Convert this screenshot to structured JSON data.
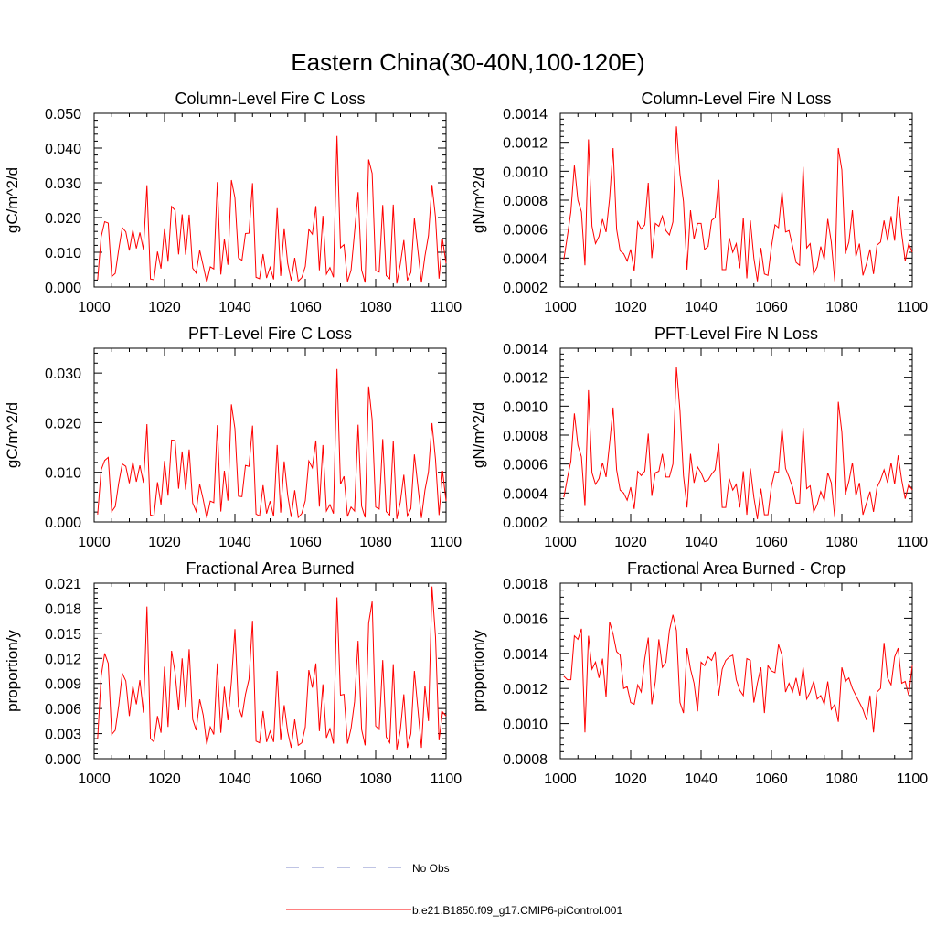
{
  "figure": {
    "title": "Eastern China(30-40N,100-120E)"
  },
  "legend": {
    "obs_label": "No Obs",
    "model_label": "b.e21.B1850.f09_g17.CMIP6-piControl.001",
    "obs_color": "#7f88c8",
    "model_color": "#ff0000"
  },
  "chart_data": [
    {
      "type": "line",
      "title": "Column-Level Fire C Loss",
      "xlabel": "",
      "ylabel": "gC/m^2/d",
      "xlim": [
        1000,
        1100
      ],
      "ylim": [
        0,
        0.05
      ],
      "xticks": [
        "1000",
        "1020",
        "1040",
        "1060",
        "1080",
        "1100"
      ],
      "yticks": [
        "0.000",
        "0.010",
        "0.020",
        "0.030",
        "0.040",
        "0.050"
      ],
      "series": [
        {
          "name": "b.e21.B1850.f09_g17.CMIP6-piControl.001",
          "color": "#ff0000",
          "x_start": 1001,
          "values": [
            0.0021,
            0.0145,
            0.0188,
            0.0184,
            0.003,
            0.0039,
            0.0109,
            0.0171,
            0.0159,
            0.0105,
            0.0164,
            0.0111,
            0.0157,
            0.0108,
            0.0293,
            0.0023,
            0.0021,
            0.0102,
            0.0053,
            0.0169,
            0.0073,
            0.0232,
            0.0221,
            0.0094,
            0.0209,
            0.0093,
            0.0208,
            0.0054,
            0.004,
            0.0106,
            0.0061,
            0.0014,
            0.0058,
            0.0052,
            0.0302,
            0.0036,
            0.0138,
            0.0064,
            0.0308,
            0.0257,
            0.0084,
            0.0077,
            0.0154,
            0.0155,
            0.0299,
            0.0028,
            0.0024,
            0.0095,
            0.0026,
            0.0057,
            0.0022,
            0.0227,
            0.0032,
            0.0169,
            0.0068,
            0.0019,
            0.0084,
            0.0017,
            0.0027,
            0.0059,
            0.0166,
            0.0152,
            0.0233,
            0.0048,
            0.0205,
            0.0037,
            0.0056,
            0.0028,
            0.0435,
            0.0113,
            0.0122,
            0.0016,
            0.0048,
            0.0158,
            0.0273,
            0.0049,
            0.0013,
            0.0367,
            0.0327,
            0.0047,
            0.0043,
            0.0236,
            0.0033,
            0.0024,
            0.0237,
            0.001,
            0.0066,
            0.0135,
            0.0019,
            0.0042,
            0.0198,
            0.0105,
            0.0013,
            0.0089,
            0.0148,
            0.0294,
            0.0201,
            0.0024,
            0.0137,
            0.0068
          ]
        }
      ]
    },
    {
      "type": "line",
      "title": "Column-Level Fire N Loss",
      "xlabel": "",
      "ylabel": "gN/m^2/d",
      "xlim": [
        1000,
        1100
      ],
      "ylim": [
        0.0002,
        0.0014
      ],
      "xticks": [
        "1000",
        "1020",
        "1040",
        "1060",
        "1080",
        "1100"
      ],
      "yticks": [
        "0.0002",
        "0.0004",
        "0.0006",
        "0.0008",
        "0.0010",
        "0.0012",
        "0.0014"
      ],
      "series": [
        {
          "name": "b.e21.B1850.f09_g17.CMIP6-piControl.001",
          "color": "#ff0000",
          "x_start": 1001,
          "values": [
            0.00039,
            0.00055,
            0.00072,
            0.00104,
            0.0008,
            0.00072,
            0.00035,
            0.00122,
            0.00062,
            0.0005,
            0.00055,
            0.00067,
            0.00058,
            0.00081,
            0.00116,
            0.0006,
            0.00045,
            0.00043,
            0.00038,
            0.00046,
            0.00031,
            0.00065,
            0.0006,
            0.00063,
            0.00092,
            0.0004,
            0.00064,
            0.00062,
            0.00069,
            0.00059,
            0.00056,
            0.00065,
            0.00131,
            0.00098,
            0.00079,
            0.00032,
            0.00073,
            0.00053,
            0.00064,
            0.00064,
            0.00046,
            0.00048,
            0.00066,
            0.00068,
            0.00094,
            0.00032,
            0.00032,
            0.00054,
            0.00044,
            0.0005,
            0.00033,
            0.00068,
            0.00026,
            0.00066,
            0.0004,
            0.00024,
            0.00047,
            0.00029,
            0.00028,
            0.00048,
            0.00063,
            0.00061,
            0.00086,
            0.00058,
            0.00059,
            0.00048,
            0.00037,
            0.00035,
            0.00103,
            0.00047,
            0.0005,
            0.00029,
            0.00034,
            0.00048,
            0.00039,
            0.00067,
            0.00051,
            0.00024,
            0.00116,
            0.00101,
            0.00043,
            0.00051,
            0.00073,
            0.00041,
            0.0005,
            0.00028,
            0.00036,
            0.00046,
            0.00029,
            0.00049,
            0.00051,
            0.00066,
            0.00052,
            0.00069,
            0.00052,
            0.00083,
            0.00057,
            0.00038,
            0.0005,
            0.00044
          ]
        }
      ]
    },
    {
      "type": "line",
      "title": "PFT-Level Fire C Loss",
      "xlabel": "",
      "ylabel": "gC/m^2/d",
      "xlim": [
        1000,
        1100
      ],
      "ylim": [
        0,
        0.035
      ],
      "xticks": [
        "1000",
        "1020",
        "1040",
        "1060",
        "1080",
        "1100"
      ],
      "yticks": [
        "0.000",
        "0.010",
        "0.020",
        "0.030"
      ],
      "series": [
        {
          "name": "b.e21.B1850.f09_g17.CMIP6-piControl.001",
          "color": "#ff0000",
          "x_start": 1001,
          "values": [
            0.0015,
            0.0105,
            0.0124,
            0.013,
            0.0021,
            0.0031,
            0.0079,
            0.0117,
            0.0112,
            0.0078,
            0.0121,
            0.0081,
            0.0114,
            0.0079,
            0.0197,
            0.0014,
            0.0012,
            0.008,
            0.0035,
            0.0123,
            0.0053,
            0.0165,
            0.0164,
            0.0067,
            0.0142,
            0.0065,
            0.0146,
            0.0038,
            0.0021,
            0.0076,
            0.0045,
            0.0008,
            0.0042,
            0.0039,
            0.0195,
            0.0021,
            0.0103,
            0.0043,
            0.0237,
            0.0188,
            0.0052,
            0.0051,
            0.0114,
            0.0112,
            0.0194,
            0.0016,
            0.0012,
            0.0074,
            0.0017,
            0.0042,
            0.0011,
            0.0155,
            0.0019,
            0.0122,
            0.0054,
            0.001,
            0.0064,
            0.0009,
            0.0017,
            0.0043,
            0.0123,
            0.0109,
            0.0164,
            0.0031,
            0.0155,
            0.0022,
            0.0035,
            0.0017,
            0.0308,
            0.0076,
            0.0092,
            0.0011,
            0.003,
            0.0022,
            0.0196,
            0.0032,
            0.0009,
            0.0273,
            0.0206,
            0.003,
            0.0026,
            0.0167,
            0.0021,
            0.0014,
            0.0164,
            0.0006,
            0.004,
            0.0095,
            0.0012,
            0.0027,
            0.0136,
            0.0072,
            0.0008,
            0.0064,
            0.0101,
            0.0199,
            0.0126,
            0.0014,
            0.0103,
            0.0042
          ]
        }
      ]
    },
    {
      "type": "line",
      "title": "PFT-Level Fire N Loss",
      "xlabel": "",
      "ylabel": "gN/m^2/d",
      "xlim": [
        1000,
        1100
      ],
      "ylim": [
        0.0002,
        0.0014
      ],
      "xticks": [
        "1000",
        "1020",
        "1040",
        "1060",
        "1080",
        "1100"
      ],
      "yticks": [
        "0.0002",
        "0.0004",
        "0.0006",
        "0.0008",
        "0.0010",
        "0.0012",
        "0.0014"
      ],
      "series": [
        {
          "name": "b.e21.B1850.f09_g17.CMIP6-piControl.001",
          "color": "#ff0000",
          "x_start": 1001,
          "values": [
            0.00037,
            0.0005,
            0.00062,
            0.00095,
            0.00073,
            0.00065,
            0.00031,
            0.00111,
            0.00054,
            0.00046,
            0.0005,
            0.00061,
            0.00051,
            0.00074,
            0.00099,
            0.00056,
            0.00042,
            0.0004,
            0.00035,
            0.00044,
            0.00029,
            0.00055,
            0.00052,
            0.00055,
            0.00081,
            0.00038,
            0.00054,
            0.00055,
            0.00067,
            0.00051,
            0.00051,
            0.0006,
            0.00127,
            0.00097,
            0.00052,
            0.0003,
            0.00067,
            0.00047,
            0.00058,
            0.00054,
            0.00048,
            0.00049,
            0.00053,
            0.00056,
            0.00074,
            0.0003,
            0.0003,
            0.0005,
            0.00042,
            0.00046,
            0.0003,
            0.00055,
            0.00025,
            0.00057,
            0.00037,
            0.00022,
            0.00043,
            0.00025,
            0.00025,
            0.00045,
            0.00055,
            0.00054,
            0.00085,
            0.00057,
            0.00051,
            0.00044,
            0.00033,
            0.00033,
            0.00085,
            0.00043,
            0.00045,
            0.00027,
            0.00032,
            0.00041,
            0.00035,
            0.00054,
            0.00047,
            0.00023,
            0.00103,
            0.00082,
            0.00039,
            0.00048,
            0.00061,
            0.00038,
            0.00047,
            0.00025,
            0.00033,
            0.00041,
            0.00027,
            0.00044,
            0.00049,
            0.00056,
            0.00047,
            0.00061,
            0.00046,
            0.00066,
            0.00049,
            0.00036,
            0.00046,
            0.00042
          ]
        }
      ]
    },
    {
      "type": "line",
      "title": "Fractional Area Burned",
      "xlabel": "",
      "ylabel": "proportion/y",
      "xlim": [
        1000,
        1100
      ],
      "ylim": [
        0,
        0.021
      ],
      "xticks": [
        "1000",
        "1020",
        "1040",
        "1060",
        "1080",
        "1100"
      ],
      "yticks": [
        "0.000",
        "0.003",
        "0.006",
        "0.009",
        "0.012",
        "0.015",
        "0.018",
        "0.021"
      ],
      "series": [
        {
          "name": "b.e21.B1850.f09_g17.CMIP6-piControl.001",
          "color": "#ff0000",
          "x_start": 1001,
          "values": [
            0.0024,
            0.0099,
            0.0126,
            0.0114,
            0.0029,
            0.0034,
            0.0064,
            0.0102,
            0.0093,
            0.0051,
            0.0087,
            0.0065,
            0.0094,
            0.0055,
            0.0182,
            0.0024,
            0.002,
            0.0051,
            0.0031,
            0.011,
            0.0038,
            0.0129,
            0.0103,
            0.0058,
            0.012,
            0.0061,
            0.0131,
            0.0047,
            0.0034,
            0.0071,
            0.0052,
            0.0017,
            0.0038,
            0.0029,
            0.0114,
            0.0031,
            0.0086,
            0.0046,
            0.0092,
            0.0155,
            0.0062,
            0.005,
            0.0077,
            0.0095,
            0.0165,
            0.0021,
            0.0019,
            0.0057,
            0.002,
            0.0033,
            0.002,
            0.0105,
            0.0022,
            0.0064,
            0.0032,
            0.0013,
            0.0047,
            0.0016,
            0.0019,
            0.0038,
            0.0106,
            0.0085,
            0.0114,
            0.0033,
            0.0089,
            0.0025,
            0.0036,
            0.0018,
            0.0193,
            0.0076,
            0.0077,
            0.0018,
            0.0036,
            0.0068,
            0.0141,
            0.0035,
            0.0016,
            0.0162,
            0.0188,
            0.0039,
            0.0035,
            0.0118,
            0.0026,
            0.0019,
            0.0113,
            0.0011,
            0.0034,
            0.0077,
            0.0013,
            0.003,
            0.0105,
            0.0059,
            0.0013,
            0.0087,
            0.0045,
            0.0206,
            0.0146,
            0.0022,
            0.0056,
            0.0051
          ]
        }
      ]
    },
    {
      "type": "line",
      "title": "Fractional Area Burned - Crop",
      "xlabel": "",
      "ylabel": "proportion/y",
      "xlim": [
        1000,
        1100
      ],
      "ylim": [
        0.0008,
        0.0018
      ],
      "xticks": [
        "1000",
        "1020",
        "1040",
        "1060",
        "1080",
        "1100"
      ],
      "yticks": [
        "0.0008",
        "0.0010",
        "0.0012",
        "0.0014",
        "0.0016",
        "0.0018"
      ],
      "series": [
        {
          "name": "b.e21.B1850.f09_g17.CMIP6-piControl.001",
          "color": "#ff0000",
          "x_start": 1001,
          "values": [
            0.00127,
            0.00125,
            0.00125,
            0.0015,
            0.00148,
            0.00154,
            0.00095,
            0.0015,
            0.00131,
            0.00135,
            0.00126,
            0.00137,
            0.00115,
            0.00158,
            0.00151,
            0.00141,
            0.00139,
            0.0012,
            0.00121,
            0.00112,
            0.00111,
            0.00122,
            0.00118,
            0.00137,
            0.00149,
            0.00111,
            0.00124,
            0.00148,
            0.00132,
            0.00135,
            0.00153,
            0.00162,
            0.00153,
            0.00112,
            0.00106,
            0.00143,
            0.00131,
            0.00123,
            0.00107,
            0.00135,
            0.00133,
            0.00138,
            0.00136,
            0.00141,
            0.00116,
            0.00131,
            0.00136,
            0.00138,
            0.00139,
            0.00125,
            0.00119,
            0.00116,
            0.00137,
            0.00136,
            0.00112,
            0.00123,
            0.00132,
            0.00106,
            0.00133,
            0.0013,
            0.00129,
            0.00145,
            0.00139,
            0.00118,
            0.00123,
            0.00118,
            0.00126,
            0.00116,
            0.00132,
            0.00114,
            0.00118,
            0.00124,
            0.00114,
            0.00116,
            0.00111,
            0.00124,
            0.00108,
            0.00111,
            0.00101,
            0.00132,
            0.00124,
            0.00126,
            0.0012,
            0.00116,
            0.00112,
            0.00108,
            0.00102,
            0.00116,
            0.00095,
            0.00118,
            0.0012,
            0.00146,
            0.00126,
            0.00122,
            0.00138,
            0.00143,
            0.00123,
            0.00124,
            0.00116,
            0.00133
          ]
        }
      ]
    }
  ]
}
